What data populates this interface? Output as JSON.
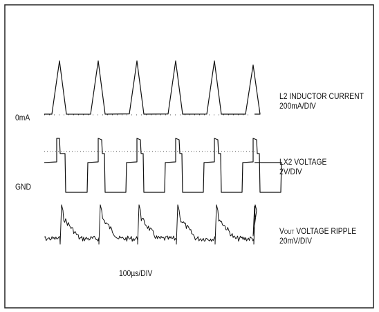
{
  "chart_data": {
    "type": "line",
    "title": "",
    "xlabel": "100µs/DIV",
    "grid": false,
    "legend": "none",
    "x_unit": "µs",
    "period_us": 100,
    "traces": [
      {
        "id": "inductor",
        "label_line1": "L2 INDUCTOR CURRENT",
        "label_line2": "200mA/DIV",
        "reference_label": "0mA",
        "shape": "triangle",
        "pulses": 6,
        "peak_mA": 560,
        "baseline_mA": 0
      },
      {
        "id": "lx2",
        "label_line1": "LX2 VOLTAGE",
        "label_line2": "2V/DIV",
        "reference_label": "GND",
        "shape": "square",
        "pulses": 6,
        "levels_V": [
          0,
          6,
          6.8,
          7.5
        ],
        "note_levels": "switching node: GND, mid plateau, high plateau, overshoot"
      },
      {
        "id": "ripple",
        "label_line1_prefix": "V",
        "label_line1_sub": "OUT",
        "label_line1_rest": " VOLTAGE RIPPLE",
        "label_line2": "20mV/DIV",
        "shape": "sawtooth-noisy",
        "pulses": 6,
        "ripple_pp_mV": 40
      }
    ]
  },
  "colors": {
    "trace": "#111111",
    "frame": "#222222",
    "background": "#ffffff"
  }
}
